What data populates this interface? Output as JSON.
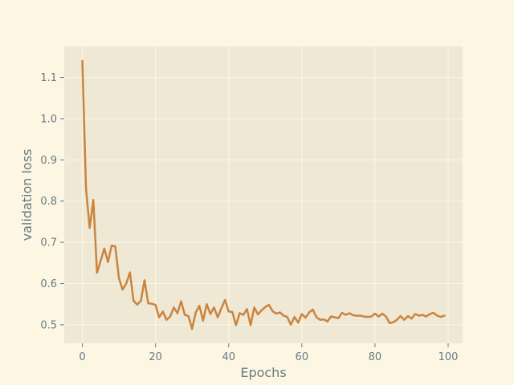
{
  "chart_data": {
    "type": "line",
    "xlabel": "Epochs",
    "ylabel": "validation loss",
    "xlim": [
      -4.95,
      103.95
    ],
    "ylim": [
      0.455,
      1.175
    ],
    "xticks": [
      0,
      20,
      40,
      60,
      80,
      100
    ],
    "yticks": [
      0.5,
      0.6,
      0.7,
      0.8,
      0.9,
      1.0,
      1.1
    ],
    "grid": true,
    "colors": {
      "background": "#fdf6e3",
      "plot_background": "#eee8d5",
      "line": "#cb843e",
      "grid": "#fdf6e3",
      "text": "#657b83"
    },
    "series": [
      {
        "x": [
          0,
          1,
          2,
          3,
          4,
          5,
          6,
          7,
          8,
          9,
          10,
          11,
          12,
          13,
          14,
          15,
          16,
          17,
          18,
          19,
          20,
          21,
          22,
          23,
          24,
          25,
          26,
          27,
          28,
          29,
          30,
          31,
          32,
          33,
          34,
          35,
          36,
          37,
          38,
          39,
          40,
          41,
          42,
          43,
          44,
          45,
          46,
          47,
          48,
          49,
          50,
          51,
          52,
          53,
          54,
          55,
          56,
          57,
          58,
          59,
          60,
          61,
          62,
          63,
          64,
          65,
          66,
          67,
          68,
          69,
          70,
          71,
          72,
          73,
          74,
          75,
          76,
          77,
          78,
          79,
          80,
          81,
          82,
          83,
          84,
          85,
          86,
          87,
          88,
          89,
          90,
          91,
          92,
          93,
          94,
          95,
          96,
          97,
          98,
          99
        ],
        "y": [
          1.14,
          0.83,
          0.735,
          0.803,
          0.626,
          0.655,
          0.685,
          0.652,
          0.692,
          0.69,
          0.613,
          0.585,
          0.6,
          0.627,
          0.558,
          0.549,
          0.558,
          0.608,
          0.552,
          0.551,
          0.548,
          0.518,
          0.532,
          0.512,
          0.52,
          0.542,
          0.528,
          0.557,
          0.524,
          0.521,
          0.49,
          0.53,
          0.546,
          0.51,
          0.55,
          0.526,
          0.542,
          0.518,
          0.54,
          0.56,
          0.532,
          0.531,
          0.499,
          0.528,
          0.524,
          0.538,
          0.499,
          0.542,
          0.525,
          0.535,
          0.543,
          0.548,
          0.533,
          0.527,
          0.53,
          0.522,
          0.519,
          0.5,
          0.519,
          0.505,
          0.526,
          0.517,
          0.53,
          0.537,
          0.518,
          0.512,
          0.513,
          0.508,
          0.52,
          0.518,
          0.516,
          0.529,
          0.524,
          0.528,
          0.523,
          0.522,
          0.522,
          0.52,
          0.519,
          0.52,
          0.527,
          0.52,
          0.527,
          0.52,
          0.504,
          0.506,
          0.512,
          0.521,
          0.512,
          0.521,
          0.515,
          0.526,
          0.522,
          0.524,
          0.52,
          0.526,
          0.529,
          0.522,
          0.519,
          0.522
        ]
      }
    ]
  }
}
